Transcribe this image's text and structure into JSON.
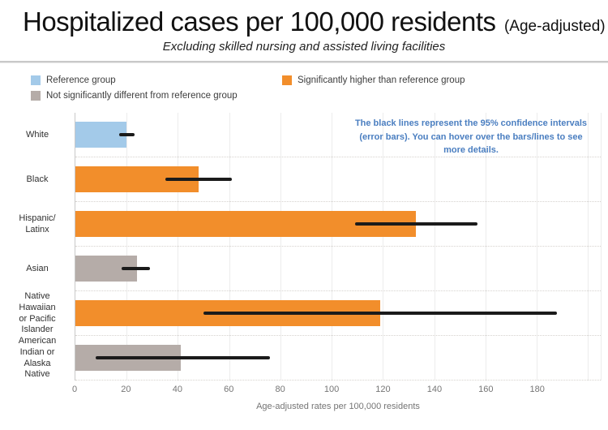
{
  "header": {
    "title": "Hospitalized cases per 100,000 residents",
    "title_suffix": "(Age-adjusted)",
    "subtitle": "Excluding skilled nursing and assisted living facilities"
  },
  "legend": {
    "items": [
      {
        "label": "Reference group",
        "color": "#A3CAE9",
        "key": "reference"
      },
      {
        "label": "Not significantly different from reference group",
        "color": "#B5ACA8",
        "key": "not_significant"
      },
      {
        "label": "Significantly higher than reference group",
        "color": "#F28E2B",
        "key": "higher"
      }
    ]
  },
  "annotation": {
    "text": "The black lines represent the 95% confidence intervals (error bars). You can hover over the bars/lines to see more details.",
    "color": "#4a7ec0"
  },
  "chart_data": {
    "type": "bar",
    "orientation": "horizontal",
    "title": "Hospitalized cases per 100,000 residents (Age-adjusted)",
    "subtitle": "Excluding skilled nursing and assisted living facilities",
    "xlabel": "Age-adjusted rates per 100,000 residents",
    "xlim": [
      0,
      205
    ],
    "xticks": [
      0,
      20,
      40,
      60,
      80,
      100,
      120,
      140,
      160,
      180
    ],
    "unlabeled_gridlines": [
      200
    ],
    "grid": true,
    "categories": [
      "White",
      "Black",
      "Hispanic/\nLatinx",
      "Asian",
      "Native\nHawaiian\nor Pacific\nIslander",
      "American\nIndian or\nAlaska\nNative"
    ],
    "values": [
      20,
      48,
      133,
      24,
      119,
      41
    ],
    "ci_low": [
      17,
      35,
      109,
      18,
      50,
      8
    ],
    "ci_high": [
      23,
      61,
      157,
      29,
      188,
      76
    ],
    "groups": [
      "reference",
      "higher",
      "higher",
      "not_significant",
      "higher",
      "not_significant"
    ],
    "colors": {
      "reference": "#A3CAE9",
      "higher": "#F28E2B",
      "not_significant": "#B5ACA8",
      "error_bar": "#1b1b1b"
    }
  }
}
